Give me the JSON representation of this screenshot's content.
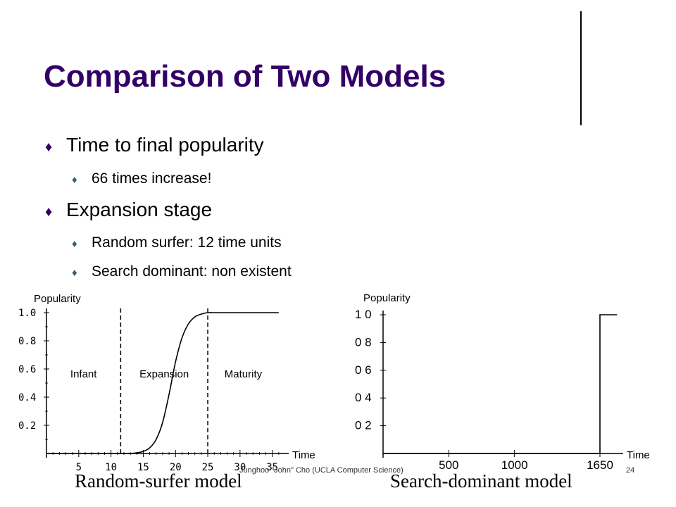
{
  "slide": {
    "title": "Comparison of Two Models",
    "bullets": [
      {
        "level": 1,
        "text": "Time to final popularity"
      },
      {
        "level": 2,
        "text": "66 times increase!"
      },
      {
        "level": 1,
        "text": "Expansion stage"
      },
      {
        "level": 2,
        "text": "Random surfer: 12 time units"
      },
      {
        "level": 2,
        "text": "Search dominant: non existent"
      }
    ],
    "footer": "Junghoo \"John\" Cho (UCLA Computer Science)",
    "page_number": "24"
  },
  "chart_data": [
    {
      "type": "line",
      "caption": "Random-surfer model",
      "ylabel": "Popularity",
      "xlabel": "Time",
      "xlim": [
        0,
        37
      ],
      "ylim": [
        0,
        1.0
      ],
      "x_ticks": [
        5,
        10,
        15,
        20,
        25,
        30,
        35
      ],
      "y_ticks": [
        0.2,
        0.4,
        0.6,
        0.8,
        1.0
      ],
      "x_tick_labels": [
        "5",
        "10",
        "15",
        "20",
        "25",
        "30",
        "35"
      ],
      "y_tick_labels": [
        "0.2",
        "0.4",
        "0.6",
        "0.8",
        "1.0"
      ],
      "stage_boundaries": [
        11.5,
        25
      ],
      "stage_labels": [
        "Infant",
        "Expansion",
        "Maturity"
      ],
      "series": [
        {
          "x": [
            0,
            10,
            13,
            14,
            15,
            16,
            17,
            18,
            19,
            20,
            21,
            22,
            23,
            24,
            25,
            26,
            28,
            30,
            33,
            36
          ],
          "values": [
            0,
            0,
            0.0,
            0.005,
            0.015,
            0.04,
            0.1,
            0.22,
            0.42,
            0.65,
            0.82,
            0.92,
            0.97,
            0.99,
            1.0,
            1.0,
            1.0,
            1.0,
            1.0,
            1.0
          ]
        }
      ]
    },
    {
      "type": "line",
      "caption": "Search-dominant model",
      "ylabel": "Popularity",
      "xlabel": "Time",
      "xlim": [
        0,
        1800
      ],
      "ylim": [
        0,
        1.0
      ],
      "x_ticks": [
        500,
        1000,
        1650
      ],
      "y_ticks": [
        0.2,
        0.4,
        0.6,
        0.8,
        1.0
      ],
      "x_tick_labels": [
        "500",
        "1000",
        "1650"
      ],
      "y_tick_labels": [
        "0 2",
        "0 4",
        "0 6",
        "0 8",
        "1 0"
      ],
      "series": [
        {
          "x": [
            0,
            1650,
            1650,
            1780
          ],
          "values": [
            0,
            0,
            1.0,
            1.0
          ]
        }
      ]
    }
  ]
}
